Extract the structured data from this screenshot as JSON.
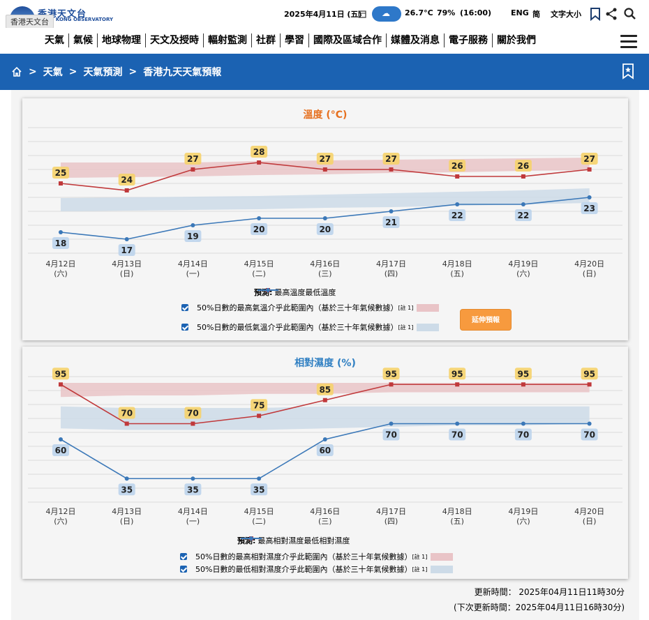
{
  "header": {
    "logo_cn": "香港天文台",
    "logo_en": "HONG KONG OBSERVATORY",
    "tooltip": "香港天文台",
    "date": "2025年4月11日 (五)",
    "temperature": "26.7°C",
    "humidity": "79%",
    "time": "(16:00)",
    "lang_eng": "ENG",
    "lang_simplified": "简",
    "font_size": "文字大小"
  },
  "nav": {
    "items": [
      "天氣",
      "氣候",
      "地球物理",
      "天文及授時",
      "輻射監測",
      "社群",
      "學習",
      "國際及區域合作",
      "媒體及消息",
      "電子服務",
      "關於我們"
    ]
  },
  "breadcrumb": {
    "items": [
      "天氣",
      "天氣預測",
      "香港九天天氣預報"
    ]
  },
  "days": [
    {
      "date": "4月12日",
      "weekday": "(六)"
    },
    {
      "date": "4月13日",
      "weekday": "(日)"
    },
    {
      "date": "4月14日",
      "weekday": "(一)"
    },
    {
      "date": "4月15日",
      "weekday": "(二)"
    },
    {
      "date": "4月16日",
      "weekday": "(三)"
    },
    {
      "date": "4月17日",
      "weekday": "(四)"
    },
    {
      "date": "4月18日",
      "weekday": "(五)"
    },
    {
      "date": "4月19日",
      "weekday": "(六)"
    },
    {
      "date": "4月20日",
      "weekday": "(日)"
    }
  ],
  "temp_panel": {
    "legend_prefix": "預測:",
    "legend_max": "最高溫度",
    "legend_min": "最低溫度",
    "range_max_label": "50%日數的最高氣溫介乎此範圍內（基於三十年氣候數據）",
    "range_min_label": "50%日數的最低氣溫介乎此範圍內（基於三十年氣候數據）",
    "note": "[註 1]",
    "extend_button": "延伸預報"
  },
  "rh_panel": {
    "legend_prefix": "預測:",
    "legend_max": "最高相對濕度",
    "legend_min": "最低相對濕度",
    "range_max_label": "50%日數的最高相對濕度介乎此範圍內（基於三十年氣候數據）",
    "range_min_label": "50%日數的最低相對濕度介乎此範圍內（基於三十年氣候數據）",
    "note": "[註 1]"
  },
  "update": {
    "updated": "更新時間： 2025年04月11日11時30分",
    "next_update": "(下次更新時間：2025年04月11日16時30分)"
  },
  "colors": {
    "max_line": "#c0393b",
    "min_line": "#3b78b8",
    "max_band": "#e9c4c7",
    "min_band": "#cddbe8",
    "max_label_bg": "#f6d36b",
    "min_label_bg": "#bcd4ec",
    "nav_blue": "#1b62b2",
    "button_orange": "#f79a3e"
  },
  "chart_data": [
    {
      "type": "line",
      "title": "溫度 (°C)",
      "categories": [
        "4月12日(六)",
        "4月13日(日)",
        "4月14日(一)",
        "4月15日(二)",
        "4月16日(三)",
        "4月17日(四)",
        "4月18日(五)",
        "4月19日(六)",
        "4月20日(日)"
      ],
      "ylim": [
        15,
        33
      ],
      "grid": true,
      "series": [
        {
          "name": "最高溫度",
          "values": [
            25,
            24,
            27,
            28,
            27,
            27,
            26,
            26,
            27
          ]
        },
        {
          "name": "最低溫度",
          "values": [
            18,
            17,
            19,
            20,
            20,
            21,
            22,
            22,
            23
          ]
        }
      ],
      "bands": [
        {
          "name": "50%日數的最高氣溫介乎此範圍內",
          "upper": [
            28,
            28,
            28,
            28.2,
            28.3,
            28.4,
            28.5,
            28.6,
            28.7
          ],
          "lower": [
            25.8,
            25.9,
            26,
            26.2,
            26.3,
            26.5,
            26.6,
            26.8,
            26.9
          ]
        },
        {
          "name": "50%日數的最低氣溫介乎此範圍內",
          "upper": [
            22.9,
            23,
            23.1,
            23.2,
            23.4,
            23.6,
            23.8,
            24,
            24.3
          ],
          "lower": [
            21,
            21.1,
            21.2,
            21.3,
            21.5,
            21.6,
            21.8,
            22,
            22.2
          ]
        }
      ]
    },
    {
      "type": "line",
      "title": "相對濕度 (%)",
      "categories": [
        "4月12日(六)",
        "4月13日(日)",
        "4月14日(一)",
        "4月15日(二)",
        "4月16日(三)",
        "4月17日(四)",
        "4月18日(五)",
        "4月19日(六)",
        "4月20日(日)"
      ],
      "ylim": [
        20,
        100
      ],
      "grid": true,
      "series": [
        {
          "name": "最高相對濕度",
          "values": [
            95,
            70,
            70,
            75,
            85,
            95,
            95,
            95,
            95
          ]
        },
        {
          "name": "最低相對濕度",
          "values": [
            60,
            35,
            35,
            35,
            60,
            70,
            70,
            70,
            70
          ]
        }
      ],
      "bands": [
        {
          "name": "50%日數的最高相對濕度介乎此範圍內",
          "upper": [
            96,
            96,
            96,
            96,
            96,
            96,
            96,
            96,
            96
          ],
          "lower": [
            87,
            88,
            88,
            89,
            89,
            90,
            90,
            90,
            90
          ]
        },
        {
          "name": "50%日數的最低相對濕度介乎此範圍內",
          "upper": [
            81,
            80,
            80,
            80,
            81,
            81,
            81,
            81,
            81
          ],
          "lower": [
            67,
            66,
            66,
            66,
            67,
            68,
            69,
            69,
            70
          ]
        }
      ]
    }
  ]
}
